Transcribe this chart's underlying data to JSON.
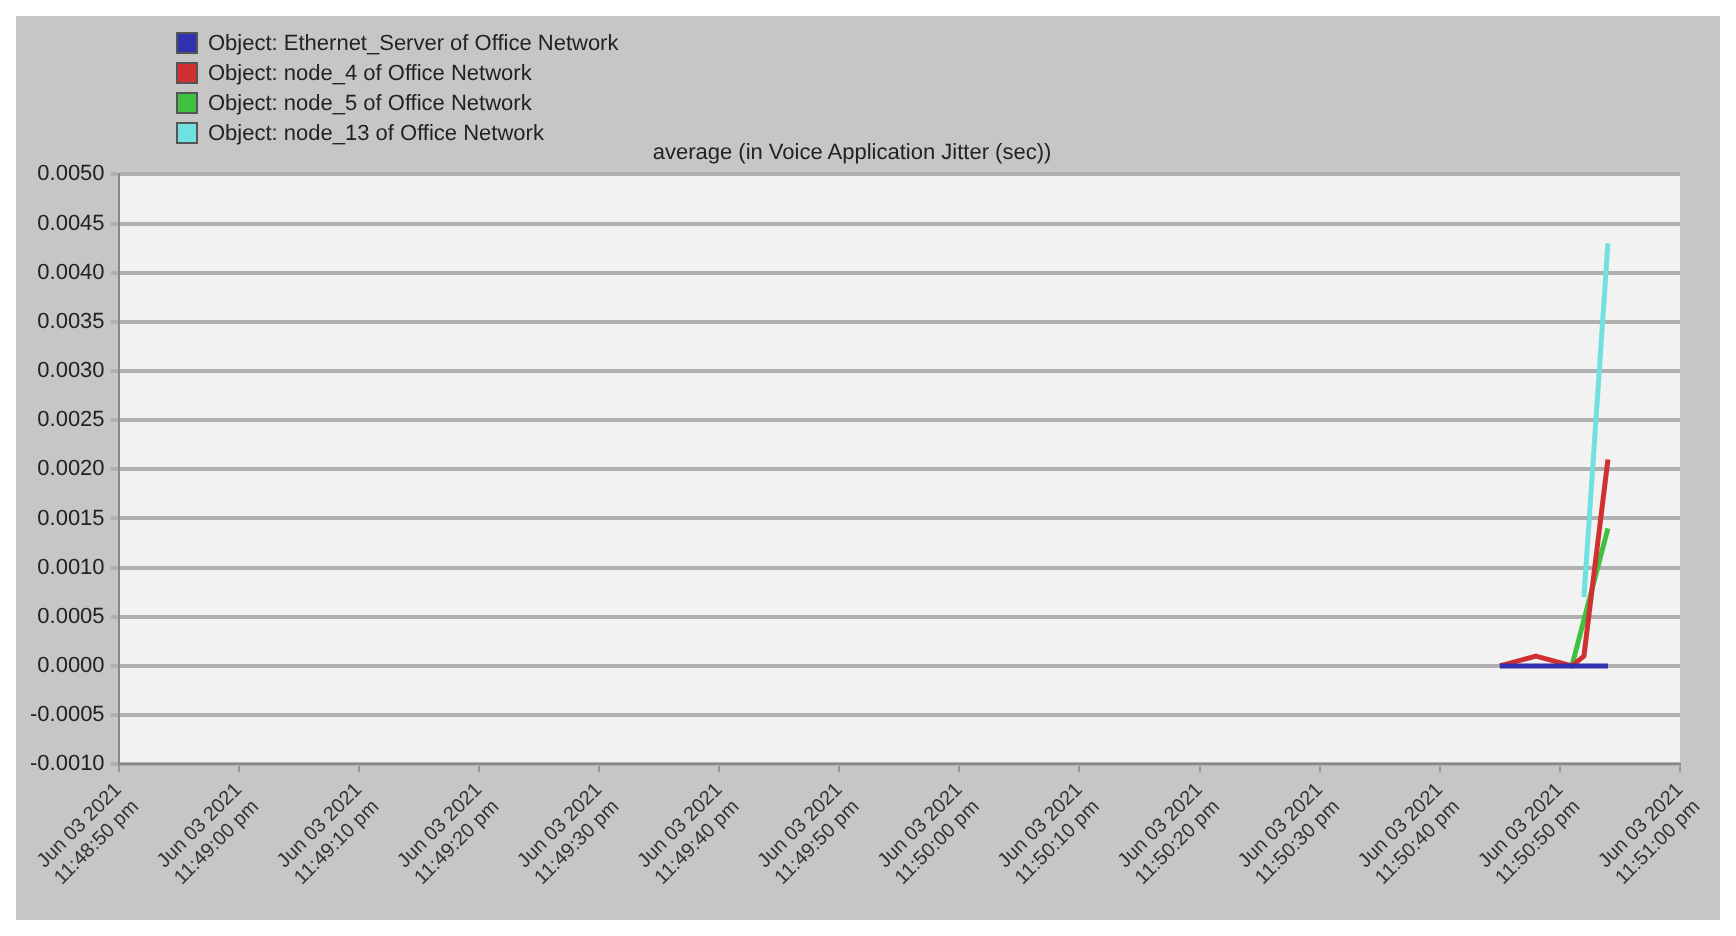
{
  "chart_data": {
    "type": "line",
    "title": "average (in Voice Application Jitter (sec))",
    "series": [
      {
        "name": "Object: Ethernet_Server of Office Network",
        "color": "#3030b0",
        "x": [
          "2021-06-03T23:50:45",
          "2021-06-03T23:50:48",
          "2021-06-03T23:50:51",
          "2021-06-03T23:50:54"
        ],
        "values": [
          0,
          0,
          0,
          0
        ]
      },
      {
        "name": "Object: node_4 of Office Network",
        "color": "#d03030",
        "x": [
          "2021-06-03T23:50:45",
          "2021-06-03T23:50:48",
          "2021-06-03T23:50:51",
          "2021-06-03T23:50:52",
          "2021-06-03T23:50:54"
        ],
        "values": [
          0,
          0.0001,
          0,
          0.0001,
          0.0021
        ]
      },
      {
        "name": "Object: node_5 of Office Network",
        "color": "#40c040",
        "x": [
          "2021-06-03T23:50:51",
          "2021-06-03T23:50:54"
        ],
        "values": [
          0,
          0.0014
        ]
      },
      {
        "name": "Object: node_13 of Office Network",
        "color": "#70e0e0",
        "x": [
          "2021-06-03T23:50:52",
          "2021-06-03T23:50:54"
        ],
        "values": [
          0.0007,
          0.0043
        ]
      }
    ],
    "xlim": [
      "2021-06-03T23:48:50",
      "2021-06-03T23:51:00"
    ],
    "xticks": [
      {
        "value": "2021-06-03T23:48:50",
        "label": "Jun 03 2021\n11:48:50 pm"
      },
      {
        "value": "2021-06-03T23:49:00",
        "label": "Jun 03 2021\n11:49:00 pm"
      },
      {
        "value": "2021-06-03T23:49:10",
        "label": "Jun 03 2021\n11:49:10 pm"
      },
      {
        "value": "2021-06-03T23:49:20",
        "label": "Jun 03 2021\n11:49:20 pm"
      },
      {
        "value": "2021-06-03T23:49:30",
        "label": "Jun 03 2021\n11:49:30 pm"
      },
      {
        "value": "2021-06-03T23:49:40",
        "label": "Jun 03 2021\n11:49:40 pm"
      },
      {
        "value": "2021-06-03T23:49:50",
        "label": "Jun 03 2021\n11:49:50 pm"
      },
      {
        "value": "2021-06-03T23:50:00",
        "label": "Jun 03 2021\n11:50:00 pm"
      },
      {
        "value": "2021-06-03T23:50:10",
        "label": "Jun 03 2021\n11:50:10 pm"
      },
      {
        "value": "2021-06-03T23:50:20",
        "label": "Jun 03 2021\n11:50:20 pm"
      },
      {
        "value": "2021-06-03T23:50:30",
        "label": "Jun 03 2021\n11:50:30 pm"
      },
      {
        "value": "2021-06-03T23:50:40",
        "label": "Jun 03 2021\n11:50:40 pm"
      },
      {
        "value": "2021-06-03T23:50:50",
        "label": "Jun 03 2021\n11:50:50 pm"
      },
      {
        "value": "2021-06-03T23:51:00",
        "label": "Jun 03 2021\n11:51:00 pm"
      }
    ],
    "ylim": [
      -0.001,
      0.005
    ],
    "yticks": [
      {
        "value": 0.005,
        "label": "0.0050"
      },
      {
        "value": 0.0045,
        "label": "0.0045"
      },
      {
        "value": 0.004,
        "label": "0.0040"
      },
      {
        "value": 0.0035,
        "label": "0.0035"
      },
      {
        "value": 0.003,
        "label": "0.0030"
      },
      {
        "value": 0.0025,
        "label": "0.0025"
      },
      {
        "value": 0.002,
        "label": "0.0020"
      },
      {
        "value": 0.0015,
        "label": "0.0015"
      },
      {
        "value": 0.001,
        "label": "0.0010"
      },
      {
        "value": 0.0005,
        "label": "0.0005"
      },
      {
        "value": 0,
        "label": "0.0000"
      },
      {
        "value": -0.0005,
        "label": "-0.0005"
      },
      {
        "value": -0.001,
        "label": "-0.0010"
      }
    ],
    "grid": "y",
    "legend": "top left",
    "marker": "none",
    "line_style": "solid"
  }
}
